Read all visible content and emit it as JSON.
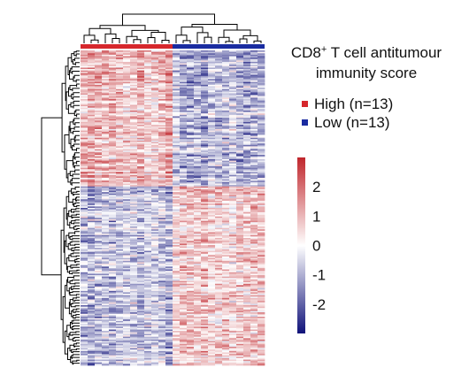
{
  "chart_data": {
    "type": "heatmap",
    "n_columns": 26,
    "n_rows": 220,
    "column_groups": [
      {
        "name": "High",
        "count": 13,
        "color": "#d6272c"
      },
      {
        "name": "Low",
        "count": 13,
        "color": "#1a2ca0"
      }
    ],
    "row_clusters": [
      {
        "rows": 95,
        "high_group_mean": 1.2,
        "low_group_mean": -1.2
      },
      {
        "rows": 125,
        "high_group_mean": -1.0,
        "low_group_mean": 1.0
      }
    ],
    "color_scale": {
      "min": -3,
      "max": 3,
      "low_color": "#10127a",
      "mid_color": "#ffffff",
      "high_color": "#c0262c",
      "ticks": [
        2,
        1,
        0,
        -1,
        -2
      ]
    }
  },
  "legend": {
    "title_line1_pre": "CD8",
    "title_line1_sup": "+",
    "title_line1_post": " T cell antitumour",
    "title_line2": "immunity score",
    "items": [
      {
        "label": "High (n=13)",
        "color": "#d6272c"
      },
      {
        "label": "Low (n=13)",
        "color": "#1a2ca0"
      }
    ]
  }
}
